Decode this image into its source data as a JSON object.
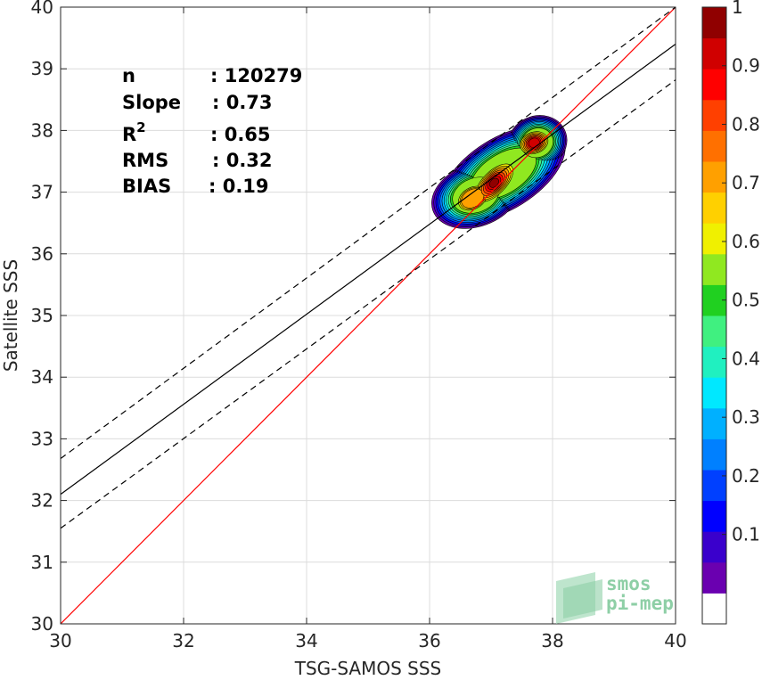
{
  "chart_data": {
    "type": "heatmap",
    "xlabel": "TSG-SAMOS SSS",
    "ylabel": "Satellite SSS",
    "xlim": [
      30,
      40
    ],
    "ylim": [
      30,
      40
    ],
    "xticks": [
      "30",
      "32",
      "34",
      "36",
      "38",
      "40"
    ],
    "yticks": [
      "30",
      "31",
      "32",
      "33",
      "34",
      "35",
      "36",
      "37",
      "38",
      "39",
      "40"
    ],
    "grid": true,
    "identity_line": {
      "x": [
        30,
        40
      ],
      "y": [
        30,
        40
      ],
      "color": "#ff0000"
    },
    "fit_line": {
      "x": [
        30,
        40
      ],
      "y": [
        32.1,
        39.4
      ],
      "color": "#000000"
    },
    "fit_upper": {
      "x": [
        30,
        40
      ],
      "y": [
        32.68,
        40.0
      ],
      "style": "dashed"
    },
    "fit_lower": {
      "x": [
        30,
        40
      ],
      "y": [
        31.55,
        38.82
      ],
      "style": "dashed"
    },
    "stats": [
      {
        "label": "n",
        "value": ": 120279"
      },
      {
        "label": "Slope",
        "value": ": 0.73"
      },
      {
        "label": "R",
        "sup": "2",
        "value": ": 0.65"
      },
      {
        "label": "RMS",
        "value": ": 0.32"
      },
      {
        "label": "BIAS",
        "value": ": 0.19"
      }
    ],
    "density_peaks": [
      {
        "x": 37.05,
        "y": 37.15,
        "value": 1.0
      },
      {
        "x": 37.7,
        "y": 37.8,
        "value": 0.95
      },
      {
        "x": 36.7,
        "y": 36.9,
        "value": 0.75
      }
    ],
    "colorbar": {
      "range": [
        0,
        1
      ],
      "ticks": [
        "0.1",
        "0.2",
        "0.3",
        "0.4",
        "0.5",
        "0.6",
        "0.7",
        "0.8",
        "0.9",
        "1"
      ],
      "colors": [
        "#ffffff",
        "#6a00b0",
        "#3a00cc",
        "#0000ff",
        "#0040ff",
        "#0080ff",
        "#00b0ff",
        "#00e8ff",
        "#20f0c0",
        "#40f080",
        "#20d020",
        "#90e820",
        "#f0f000",
        "#ffd000",
        "#ffa000",
        "#ff7000",
        "#ff4000",
        "#ff0000",
        "#d00000",
        "#900000"
      ]
    }
  },
  "logo": {
    "line1": "smos",
    "line2": "pi-mep"
  }
}
